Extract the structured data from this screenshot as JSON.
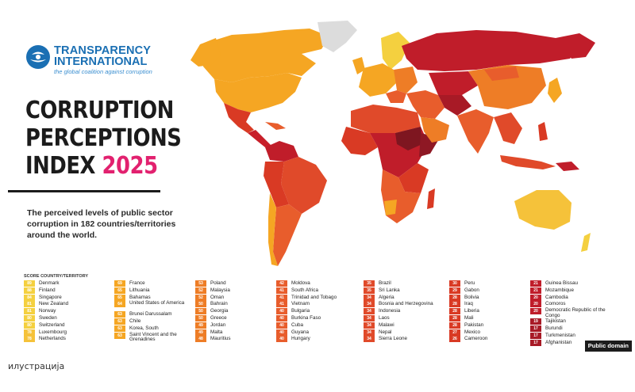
{
  "logo": {
    "line1": "TRANSPARENCY",
    "line2": "INTERNATIONAL",
    "tagline": "the global coalition against corruption",
    "icon": "globe-icon"
  },
  "title": {
    "line1": "CORRUPTION",
    "line2": "PERCEPTIONS",
    "line3": "INDEX",
    "year": "2025"
  },
  "subtitle": "The perceived levels of public sector corruption in 182 countries/territories around the world.",
  "colors": {
    "brand_blue": "#1a6fb3",
    "year_pink": "#e2216f",
    "clean": "#f4d03f",
    "high": "#f5a623",
    "mid_high": "#ee7d26",
    "mid": "#e85d2c",
    "mid_low": "#d93a24",
    "low": "#c01d2a",
    "very_low": "#7e1620",
    "no_data": "#dcdcdc"
  },
  "legend": {
    "header": "SCORE  COUNTRY/TERRITORY",
    "columns": [
      [
        {
          "score": "89",
          "name": "Denmark",
          "color": "#f4d03f"
        },
        {
          "score": "88",
          "name": "Finland",
          "color": "#f4d03f"
        },
        {
          "score": "84",
          "name": "Singapore",
          "color": "#f4d03f"
        },
        {
          "score": "81",
          "name": "New Zealand",
          "color": "#f4d03f"
        },
        {
          "score": "81",
          "name": "Norway",
          "color": "#f4d03f"
        },
        {
          "score": "80",
          "name": "Sweden",
          "color": "#f4d03f"
        },
        {
          "score": "80",
          "name": "Switzerland",
          "color": "#f4d03f"
        },
        {
          "score": "78",
          "name": "Luxembourg",
          "color": "#f5c23a"
        },
        {
          "score": "78",
          "name": "Netherlands",
          "color": "#f5c23a"
        }
      ],
      [
        {
          "score": "69",
          "name": "France",
          "color": "#f5a623"
        },
        {
          "score": "65",
          "name": "Lithuania",
          "color": "#f5a623"
        },
        {
          "score": "65",
          "name": "Bahamas",
          "color": "#f5a623"
        },
        {
          "score": "64",
          "name": "United States of America",
          "color": "#f5a623",
          "two": true
        },
        {
          "score": "63",
          "name": "Brunei Darussalam",
          "color": "#f5a623"
        },
        {
          "score": "63",
          "name": "Chile",
          "color": "#f5a623"
        },
        {
          "score": "63",
          "name": "Korea, South",
          "color": "#f5a623"
        },
        {
          "score": "63",
          "name": "Saint Vincent and the Grenadines",
          "color": "#f5a623",
          "two": true
        }
      ],
      [
        {
          "score": "53",
          "name": "Poland",
          "color": "#ee7d26"
        },
        {
          "score": "52",
          "name": "Malaysia",
          "color": "#ee7d26"
        },
        {
          "score": "52",
          "name": "Oman",
          "color": "#ee7d26"
        },
        {
          "score": "50",
          "name": "Bahrain",
          "color": "#ee7d26"
        },
        {
          "score": "50",
          "name": "Georgia",
          "color": "#ee7d26"
        },
        {
          "score": "50",
          "name": "Greece",
          "color": "#ee7d26"
        },
        {
          "score": "49",
          "name": "Jordan",
          "color": "#ee7d26"
        },
        {
          "score": "49",
          "name": "Malta",
          "color": "#ee7d26"
        },
        {
          "score": "48",
          "name": "Mauritius",
          "color": "#ee7d26"
        }
      ],
      [
        {
          "score": "42",
          "name": "Moldova",
          "color": "#e85d2c"
        },
        {
          "score": "41",
          "name": "South Africa",
          "color": "#e85d2c"
        },
        {
          "score": "41",
          "name": "Trinidad and Tobago",
          "color": "#e85d2c"
        },
        {
          "score": "41",
          "name": "Vietnam",
          "color": "#e85d2c"
        },
        {
          "score": "40",
          "name": "Bulgaria",
          "color": "#e85d2c"
        },
        {
          "score": "40",
          "name": "Burkina Faso",
          "color": "#e85d2c"
        },
        {
          "score": "40",
          "name": "Cuba",
          "color": "#e85d2c"
        },
        {
          "score": "40",
          "name": "Guyana",
          "color": "#e85d2c"
        },
        {
          "score": "40",
          "name": "Hungary",
          "color": "#e85d2c"
        }
      ],
      [
        {
          "score": "35",
          "name": "Brazil",
          "color": "#e04a2a"
        },
        {
          "score": "35",
          "name": "Sri Lanka",
          "color": "#e04a2a"
        },
        {
          "score": "34",
          "name": "Algeria",
          "color": "#e04a2a"
        },
        {
          "score": "34",
          "name": "Bosnia and Herzegovina",
          "color": "#e04a2a"
        },
        {
          "score": "34",
          "name": "Indonesia",
          "color": "#e04a2a"
        },
        {
          "score": "34",
          "name": "Laos",
          "color": "#e04a2a"
        },
        {
          "score": "34",
          "name": "Malawi",
          "color": "#e04a2a"
        },
        {
          "score": "34",
          "name": "Nepal",
          "color": "#e04a2a"
        },
        {
          "score": "34",
          "name": "Sierra Leone",
          "color": "#e04a2a"
        }
      ],
      [
        {
          "score": "30",
          "name": "Peru",
          "color": "#d93a24"
        },
        {
          "score": "29",
          "name": "Gabon",
          "color": "#d93a24"
        },
        {
          "score": "28",
          "name": "Bolivia",
          "color": "#d93a24"
        },
        {
          "score": "28",
          "name": "Iraq",
          "color": "#d93a24"
        },
        {
          "score": "28",
          "name": "Liberia",
          "color": "#d93a24"
        },
        {
          "score": "28",
          "name": "Mali",
          "color": "#d93a24"
        },
        {
          "score": "28",
          "name": "Pakistan",
          "color": "#d93a24"
        },
        {
          "score": "27",
          "name": "Mexico",
          "color": "#d93a24"
        },
        {
          "score": "26",
          "name": "Cameroon",
          "color": "#d93a24"
        }
      ],
      [
        {
          "score": "21",
          "name": "Guinea Bissau",
          "color": "#c01d2a"
        },
        {
          "score": "21",
          "name": "Mozambique",
          "color": "#c01d2a"
        },
        {
          "score": "20",
          "name": "Cambodia",
          "color": "#c01d2a"
        },
        {
          "score": "20",
          "name": "Comoros",
          "color": "#c01d2a"
        },
        {
          "score": "20",
          "name": "Democratic Republic of the Congo",
          "color": "#c01d2a",
          "two": true
        },
        {
          "score": "19",
          "name": "Tajikistan",
          "color": "#a81a26"
        },
        {
          "score": "17",
          "name": "Burundi",
          "color": "#a81a26"
        },
        {
          "score": "17",
          "name": "Turkmenistan",
          "color": "#a81a26"
        },
        {
          "score": "17",
          "name": "Afghanistan",
          "color": "#a81a26"
        }
      ]
    ]
  },
  "badge": "Public domain",
  "caption": "илустрација"
}
